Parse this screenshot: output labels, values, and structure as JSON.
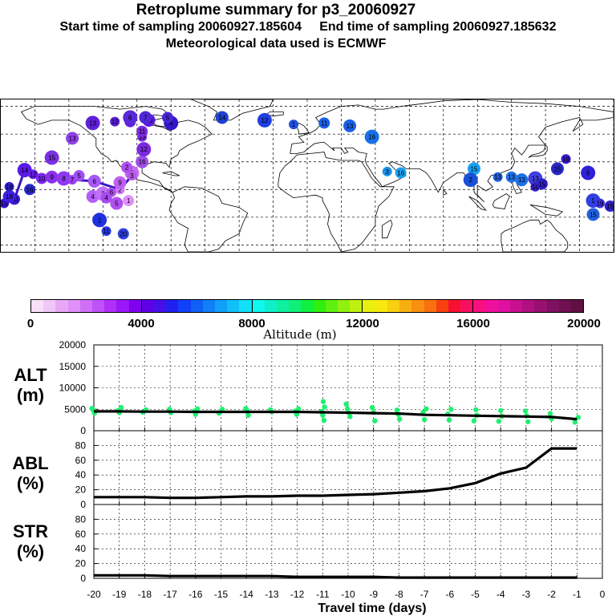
{
  "header": {
    "title": "Retroplume summary for p3_20060927",
    "sampling_line": "Start time of sampling 20060927.185604     End time of sampling 20060927.185632",
    "met_line": "Meteorological data used is ECMWF"
  },
  "map": {
    "markers": [
      {
        "lon": -178,
        "lat": 0,
        "label": "13",
        "color": "#3a14d8"
      },
      {
        "lon": -172,
        "lat": 3,
        "label": "20",
        "color": "#3818d0"
      },
      {
        "lon": -175,
        "lat": 5,
        "label": "18",
        "color": "#4020e0"
      },
      {
        "lon": -166,
        "lat": 24,
        "label": "14",
        "color": "#5a1ae8"
      },
      {
        "lon": -161,
        "lat": 21,
        "label": "12",
        "color": "#6420e8"
      },
      {
        "lon": -156,
        "lat": 18,
        "label": "10",
        "color": "#7a28f0"
      },
      {
        "lon": -150,
        "lat": 19,
        "label": "9",
        "color": "#8a30f0"
      },
      {
        "lon": -143,
        "lat": 18,
        "label": "8",
        "color": "#9038f4"
      },
      {
        "lon": -138,
        "lat": 17,
        "label": "7",
        "color": "#9a40f4"
      },
      {
        "lon": -134,
        "lat": 20,
        "label": "5",
        "color": "#a050f4"
      },
      {
        "lon": -125,
        "lat": 16,
        "label": "6",
        "color": "#a858f8"
      },
      {
        "lon": -150,
        "lat": 33,
        "label": "15",
        "color": "#7a30e0"
      },
      {
        "lon": -175,
        "lat": 12,
        "label": "18",
        "color": "#3020c8"
      },
      {
        "lon": -163,
        "lat": 10,
        "label": "16",
        "color": "#2828c8"
      },
      {
        "lon": -126,
        "lat": 5,
        "label": "4",
        "color": "#b460f8"
      },
      {
        "lon": -120,
        "lat": 7,
        "label": "3",
        "color": "#c070f8"
      },
      {
        "lon": -110,
        "lat": 10,
        "label": "2",
        "color": "#d07af8"
      },
      {
        "lon": -105,
        "lat": 2,
        "label": "1",
        "color": "#e090f8"
      },
      {
        "lon": -110,
        "lat": 15,
        "label": "9",
        "color": "#c060f0"
      },
      {
        "lon": -103,
        "lat": 22,
        "label": "8",
        "color": "#c868f0"
      },
      {
        "lon": -103,
        "lat": 20,
        "label": "3",
        "color": "#b858e8"
      },
      {
        "lon": -106,
        "lat": 26,
        "label": "2",
        "color": "#b050f0"
      },
      {
        "lon": -97,
        "lat": 30,
        "label": "16",
        "color": "#a050e8"
      },
      {
        "lon": -96,
        "lat": 39,
        "label": "12",
        "color": "#7a2ae0"
      },
      {
        "lon": -97,
        "lat": 48,
        "label": "13",
        "color": "#7a2ae0"
      },
      {
        "lon": -97,
        "lat": 52,
        "label": "11",
        "color": "#7a2ae0"
      },
      {
        "lon": -138,
        "lat": 47,
        "label": "13",
        "color": "#9040e8"
      },
      {
        "lon": -126,
        "lat": 58,
        "label": "13",
        "color": "#6020d8"
      },
      {
        "lon": -113,
        "lat": 59,
        "label": "12",
        "color": "#5a20d8"
      },
      {
        "lon": -104,
        "lat": 59,
        "label": "11",
        "color": "#6020d8"
      },
      {
        "lon": -93,
        "lat": 60,
        "label": "10",
        "color": "#5a1ae0"
      },
      {
        "lon": -80,
        "lat": 58,
        "label": "4",
        "color": "#3018c8"
      },
      {
        "lon": -115,
        "lat": 8,
        "label": "6",
        "color": "#b050f0"
      },
      {
        "lon": -118,
        "lat": 4,
        "label": "4",
        "color": "#a848f0"
      },
      {
        "lon": -112,
        "lat": 0,
        "label": "5",
        "color": "#b050f0"
      },
      {
        "lon": -122,
        "lat": -12,
        "label": "1",
        "color": "#2030e0"
      },
      {
        "lon": -118,
        "lat": -20,
        "label": "11",
        "color": "#2838e0"
      },
      {
        "lon": -108,
        "lat": -22,
        "label": "20",
        "color": "#3040e0"
      },
      {
        "lon": -50,
        "lat": 62,
        "label": "14",
        "color": "#2040d0"
      },
      {
        "lon": -25,
        "lat": 60,
        "label": "12",
        "color": "#2040e0"
      },
      {
        "lon": -8,
        "lat": 57,
        "label": "1",
        "color": "#2050e0"
      },
      {
        "lon": 10,
        "lat": 58,
        "label": "11",
        "color": "#1a60e8"
      },
      {
        "lon": 25,
        "lat": 56,
        "label": "13",
        "color": "#1a60e8"
      },
      {
        "lon": 38,
        "lat": 48,
        "label": "16",
        "color": "#1a70e8"
      },
      {
        "lon": 47,
        "lat": 23,
        "label": "3",
        "color": "#1890e8"
      },
      {
        "lon": 55,
        "lat": 22,
        "label": "16",
        "color": "#18a0f0"
      },
      {
        "lon": 98,
        "lat": 25,
        "label": "15",
        "color": "#18a0f0"
      },
      {
        "lon": 96,
        "lat": 17,
        "label": "2",
        "color": "#1850d8"
      },
      {
        "lon": 112,
        "lat": 19,
        "label": "13",
        "color": "#2060e0"
      },
      {
        "lon": 120,
        "lat": 19,
        "label": "13",
        "color": "#2070e8"
      },
      {
        "lon": 126,
        "lat": 17,
        "label": "13",
        "color": "#2070e8"
      },
      {
        "lon": 134,
        "lat": 18,
        "label": "13",
        "color": "#4040e0"
      },
      {
        "lon": 134,
        "lat": 12,
        "label": "18",
        "color": "#3820c0"
      },
      {
        "lon": 138,
        "lat": 14,
        "label": "15",
        "color": "#3020c8"
      },
      {
        "lon": 147,
        "lat": 25,
        "label": "15",
        "color": "#2828c8"
      },
      {
        "lon": 168,
        "lat": 2,
        "label": "1",
        "color": "#3040e0"
      },
      {
        "lon": 172,
        "lat": 0,
        "label": "19",
        "color": "#4030e0"
      },
      {
        "lon": 178,
        "lat": -2,
        "label": "15",
        "color": "#3020c8"
      },
      {
        "lon": 168,
        "lat": -8,
        "label": "15",
        "color": "#2060e0"
      },
      {
        "lon": 165,
        "lat": 22,
        "label": "6",
        "color": "#3020d8"
      },
      {
        "lon": 152,
        "lat": 32,
        "label": "19",
        "color": "#3818d0"
      },
      {
        "lon": -82,
        "lat": 62,
        "label": "5",
        "color": "#4828d8"
      },
      {
        "lon": -95,
        "lat": 62,
        "label": "7",
        "color": "#5028d8"
      },
      {
        "lon": -104,
        "lat": 62,
        "label": "6",
        "color": "#5a28d8"
      }
    ]
  },
  "colorbar": {
    "colors": [
      "#f8e0f8",
      "#f0c8f8",
      "#e8a8f8",
      "#e090f8",
      "#d070f8",
      "#c050f8",
      "#b030f8",
      "#9818f8",
      "#8000f0",
      "#6000e8",
      "#4810e8",
      "#2020f0",
      "#1040f8",
      "#1060f8",
      "#1080f8",
      "#10a0f8",
      "#10c0f8",
      "#10e0f8",
      "#10f8f0",
      "#10f0c8",
      "#10f0a0",
      "#10f078",
      "#10f040",
      "#30f010",
      "#60f010",
      "#90f010",
      "#c0f010",
      "#e8f010",
      "#f8e810",
      "#f8d010",
      "#f8b010",
      "#f89010",
      "#f87010",
      "#f84010",
      "#f81030",
      "#f81060",
      "#f81080",
      "#f010a0",
      "#e010a0",
      "#c81090",
      "#b01080",
      "#981070",
      "#801060",
      "#701050",
      "#601040"
    ],
    "ticks": [
      "0",
      "4000",
      "8000",
      "12000",
      "16000",
      "20000"
    ],
    "title": "Altitude (m)"
  },
  "chart_data": [
    {
      "type": "line",
      "panel": "ALT",
      "title": "ALT (m)",
      "title_line1": "ALT",
      "title_line2": "(m)",
      "x": [
        -20,
        -19,
        -18,
        -17,
        -16,
        -15,
        -14,
        -13,
        -12,
        -11,
        -10,
        -9,
        -8,
        -7,
        -6,
        -5,
        -4,
        -3,
        -2,
        -1
      ],
      "ylim": [
        0,
        20000
      ],
      "yticks": [
        "0",
        "5000",
        "10000",
        "15000",
        "20000"
      ],
      "series": [
        {
          "name": "median",
          "values": [
            4500,
            4500,
            4450,
            4450,
            4400,
            4400,
            4400,
            4400,
            4400,
            4300,
            4200,
            4100,
            4000,
            3700,
            3600,
            3500,
            3400,
            3300,
            3200,
            2700
          ]
        }
      ],
      "scatter": {
        "x": [
          -20,
          -20,
          -20,
          -19,
          -19,
          -19,
          -18,
          -18,
          -17,
          -17,
          -16,
          -16,
          -16,
          -15,
          -15,
          -14,
          -14,
          -14,
          -13,
          -13,
          -12,
          -12,
          -12,
          -11,
          -11,
          -11,
          -11,
          -11,
          -10,
          -10,
          -10,
          -10,
          -9,
          -9,
          -9,
          -8,
          -8,
          -8,
          -7,
          -7,
          -7,
          -6,
          -6,
          -6,
          -5,
          -5,
          -5,
          -4,
          -4,
          -4,
          -3,
          -3,
          -3,
          -2,
          -2,
          -1,
          -1
        ],
        "y": [
          5200,
          4800,
          4100,
          5400,
          4700,
          4200,
          4900,
          4300,
          5000,
          4200,
          5100,
          4600,
          3800,
          5000,
          4100,
          5200,
          4700,
          3600,
          4900,
          4400,
          5100,
          4600,
          3800,
          6800,
          5500,
          4500,
          3600,
          2400,
          6200,
          5100,
          4200,
          3300,
          5400,
          4300,
          2300,
          4800,
          3800,
          2700,
          5100,
          4300,
          2600,
          5000,
          3900,
          2500,
          4900,
          3600,
          2300,
          4700,
          3400,
          2200,
          4600,
          3500,
          2100,
          4000,
          2800,
          3100,
          2000
        ]
      }
    },
    {
      "type": "line",
      "panel": "ABL",
      "title": "ABL (%)",
      "title_line1": "ABL",
      "title_line2": "(%)",
      "x": [
        -20,
        -19,
        -18,
        -17,
        -16,
        -15,
        -14,
        -13,
        -12,
        -11,
        -10,
        -9,
        -8,
        -7,
        -6,
        -5,
        -4,
        -3,
        -2,
        -1
      ],
      "ylim": [
        0,
        100
      ],
      "yticks": [
        "0",
        "20",
        "40",
        "60",
        "80"
      ],
      "series": [
        {
          "name": "ABL fraction",
          "values": [
            10,
            10,
            10,
            9,
            9,
            10,
            11,
            11,
            12,
            12,
            13,
            14,
            16,
            18,
            22,
            29,
            42,
            50,
            76,
            76
          ]
        }
      ]
    },
    {
      "type": "line",
      "panel": "STR",
      "title": "STR (%)",
      "title_line1": "STR",
      "title_line2": "(%)",
      "x": [
        -20,
        -19,
        -18,
        -17,
        -16,
        -15,
        -14,
        -13,
        -12,
        -11,
        -10,
        -9,
        -8,
        -7,
        -6,
        -5,
        -4,
        -3,
        -2,
        -1
      ],
      "ylim": [
        0,
        100
      ],
      "yticks": [
        "0",
        "20",
        "40",
        "60",
        "80"
      ],
      "series": [
        {
          "name": "STR fraction",
          "values": [
            4,
            4,
            4,
            3,
            3,
            3,
            3,
            3,
            2,
            2,
            2,
            2,
            1,
            1,
            1,
            1,
            1,
            1,
            1,
            1
          ]
        }
      ]
    }
  ],
  "xaxis": {
    "ticks": [
      "-20",
      "-19",
      "-18",
      "-17",
      "-16",
      "-15",
      "-14",
      "-13",
      "-12",
      "-11",
      "-10",
      "-9",
      "-8",
      "-7",
      "-6",
      "-5",
      "-4",
      "-3",
      "-2",
      "-1",
      "0"
    ],
    "label": "Travel time (days)"
  }
}
